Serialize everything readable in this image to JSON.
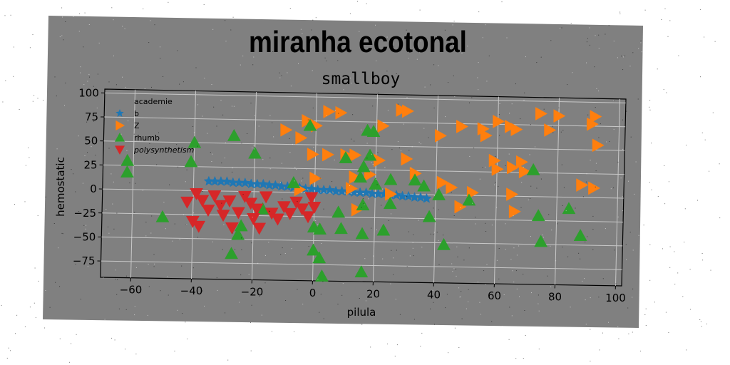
{
  "banner_title": "miranha ecotonal",
  "chart_data": {
    "type": "scatter",
    "title": "smallboy",
    "xlabel": "pilula",
    "ylabel": "hemostatic",
    "xlim": [
      -70,
      102
    ],
    "ylim": [
      -92,
      104
    ],
    "xticks": [
      -60,
      -40,
      -20,
      0,
      20,
      40,
      60,
      80,
      100
    ],
    "yticks": [
      100,
      75,
      50,
      25,
      0,
      -25,
      -50,
      -75
    ],
    "grid": true,
    "legend_position": "top-left",
    "colors": {
      "figure_bg": "#808080",
      "axes_bg": "#808080",
      "grid": "#c8c8c8",
      "b": "#1f77b4",
      "Z": "#ff7f0e",
      "rhumb": "#2ca02c",
      "polysynthetism": "#d62728"
    },
    "series": [
      {
        "name": "academie",
        "marker": "none",
        "points": []
      },
      {
        "name": "b",
        "marker": "star",
        "points": [
          [
            -35,
            10
          ],
          [
            -33,
            10
          ],
          [
            -31,
            10
          ],
          [
            -29,
            10
          ],
          [
            -27,
            9
          ],
          [
            -25,
            9
          ],
          [
            -23,
            9
          ],
          [
            -21,
            8
          ],
          [
            -19,
            8
          ],
          [
            -17,
            8
          ],
          [
            -15,
            7
          ],
          [
            -13,
            7
          ],
          [
            -11,
            6
          ],
          [
            -9,
            6
          ],
          [
            -7,
            5
          ],
          [
            -5,
            5
          ],
          [
            -3,
            4
          ],
          [
            -1,
            4
          ],
          [
            1,
            3
          ],
          [
            3,
            3
          ],
          [
            5,
            3
          ],
          [
            7,
            2
          ],
          [
            9,
            2
          ],
          [
            11,
            2
          ],
          [
            13,
            1
          ],
          [
            15,
            1
          ],
          [
            17,
            1
          ],
          [
            19,
            0
          ],
          [
            21,
            0
          ],
          [
            23,
            0
          ],
          [
            25,
            -1
          ],
          [
            27,
            -1
          ],
          [
            29,
            -2
          ],
          [
            31,
            -2
          ],
          [
            33,
            -3
          ],
          [
            35,
            -3
          ],
          [
            37,
            -4
          ]
        ]
      },
      {
        "name": "Z",
        "marker": "triangle-right",
        "points": [
          [
            -10,
            65
          ],
          [
            -5,
            57
          ],
          [
            -3,
            75
          ],
          [
            0,
            70
          ],
          [
            4,
            85
          ],
          [
            8,
            84
          ],
          [
            28,
            88
          ],
          [
            30,
            87
          ],
          [
            22,
            71
          ],
          [
            -1,
            40
          ],
          [
            4,
            40
          ],
          [
            10,
            40
          ],
          [
            13,
            40
          ],
          [
            18,
            20
          ],
          [
            13,
            17
          ],
          [
            21,
            35
          ],
          [
            30,
            37
          ],
          [
            33,
            22
          ],
          [
            0,
            15
          ],
          [
            -5,
            3
          ],
          [
            12,
            5
          ],
          [
            25,
            0
          ],
          [
            14,
            -17
          ],
          [
            41,
            62
          ],
          [
            48,
            72
          ],
          [
            55,
            70
          ],
          [
            56,
            63
          ],
          [
            60,
            78
          ],
          [
            64,
            73
          ],
          [
            66,
            70
          ],
          [
            74,
            87
          ],
          [
            80,
            85
          ],
          [
            92,
            85
          ],
          [
            91,
            77
          ],
          [
            93,
            55
          ],
          [
            59,
            37
          ],
          [
            65,
            30
          ],
          [
            68,
            36
          ],
          [
            69,
            26
          ],
          [
            42,
            13
          ],
          [
            45,
            8
          ],
          [
            48,
            -12
          ],
          [
            52,
            3
          ],
          [
            60,
            28
          ],
          [
            65,
            2
          ],
          [
            66,
            -16
          ],
          [
            77,
            70
          ],
          [
            88,
            13
          ],
          [
            92,
            10
          ]
        ]
      },
      {
        "name": "rhumb",
        "marker": "triangle-up",
        "points": [
          [
            -62,
            30
          ],
          [
            -62,
            18
          ],
          [
            -50,
            -28
          ],
          [
            -41,
            30
          ],
          [
            -40,
            50
          ],
          [
            -27,
            58
          ],
          [
            -20,
            40
          ],
          [
            -25,
            -45
          ],
          [
            -24,
            -36
          ],
          [
            -27,
            -65
          ],
          [
            -17,
            -18
          ],
          [
            -7,
            10
          ],
          [
            -2,
            70
          ],
          [
            0,
            -36
          ],
          [
            2,
            -38
          ],
          [
            0,
            -60
          ],
          [
            2,
            -68
          ],
          [
            3,
            -87
          ],
          [
            8,
            -20
          ],
          [
            9,
            -37
          ],
          [
            10,
            37
          ],
          [
            15,
            17
          ],
          [
            16,
            28
          ],
          [
            17,
            66
          ],
          [
            19,
            65
          ],
          [
            18,
            40
          ],
          [
            16,
            -12
          ],
          [
            16,
            -42
          ],
          [
            16,
            -82
          ],
          [
            20,
            10
          ],
          [
            23,
            -38
          ],
          [
            25,
            15
          ],
          [
            25,
            -10
          ],
          [
            33,
            15
          ],
          [
            36,
            9
          ],
          [
            38,
            -23
          ],
          [
            41,
            0
          ],
          [
            43,
            -52
          ],
          [
            51,
            -5
          ],
          [
            72,
            28
          ],
          [
            74,
            -20
          ],
          [
            75,
            -47
          ],
          [
            84,
            -12
          ],
          [
            88,
            -40
          ]
        ]
      },
      {
        "name": "polysynthetism",
        "marker": "triangle-down",
        "points": [
          [
            -42,
            -12
          ],
          [
            -40,
            -32
          ],
          [
            -38,
            -37
          ],
          [
            -37,
            -10
          ],
          [
            -35,
            -20
          ],
          [
            -33,
            -5
          ],
          [
            -31,
            -15
          ],
          [
            -30,
            -25
          ],
          [
            -28,
            -10
          ],
          [
            -27,
            -38
          ],
          [
            -25,
            -22
          ],
          [
            -23,
            -5
          ],
          [
            -21,
            -12
          ],
          [
            -20,
            -28
          ],
          [
            -19,
            -18
          ],
          [
            -18,
            -38
          ],
          [
            -16,
            -5
          ],
          [
            -14,
            -22
          ],
          [
            -12,
            -28
          ],
          [
            -10,
            -15
          ],
          [
            -8,
            -22
          ],
          [
            -6,
            -10
          ],
          [
            -4,
            -17
          ],
          [
            -2,
            -25
          ],
          [
            0,
            -15
          ],
          [
            -1,
            -5
          ],
          [
            -39,
            -3
          ]
        ]
      }
    ]
  }
}
